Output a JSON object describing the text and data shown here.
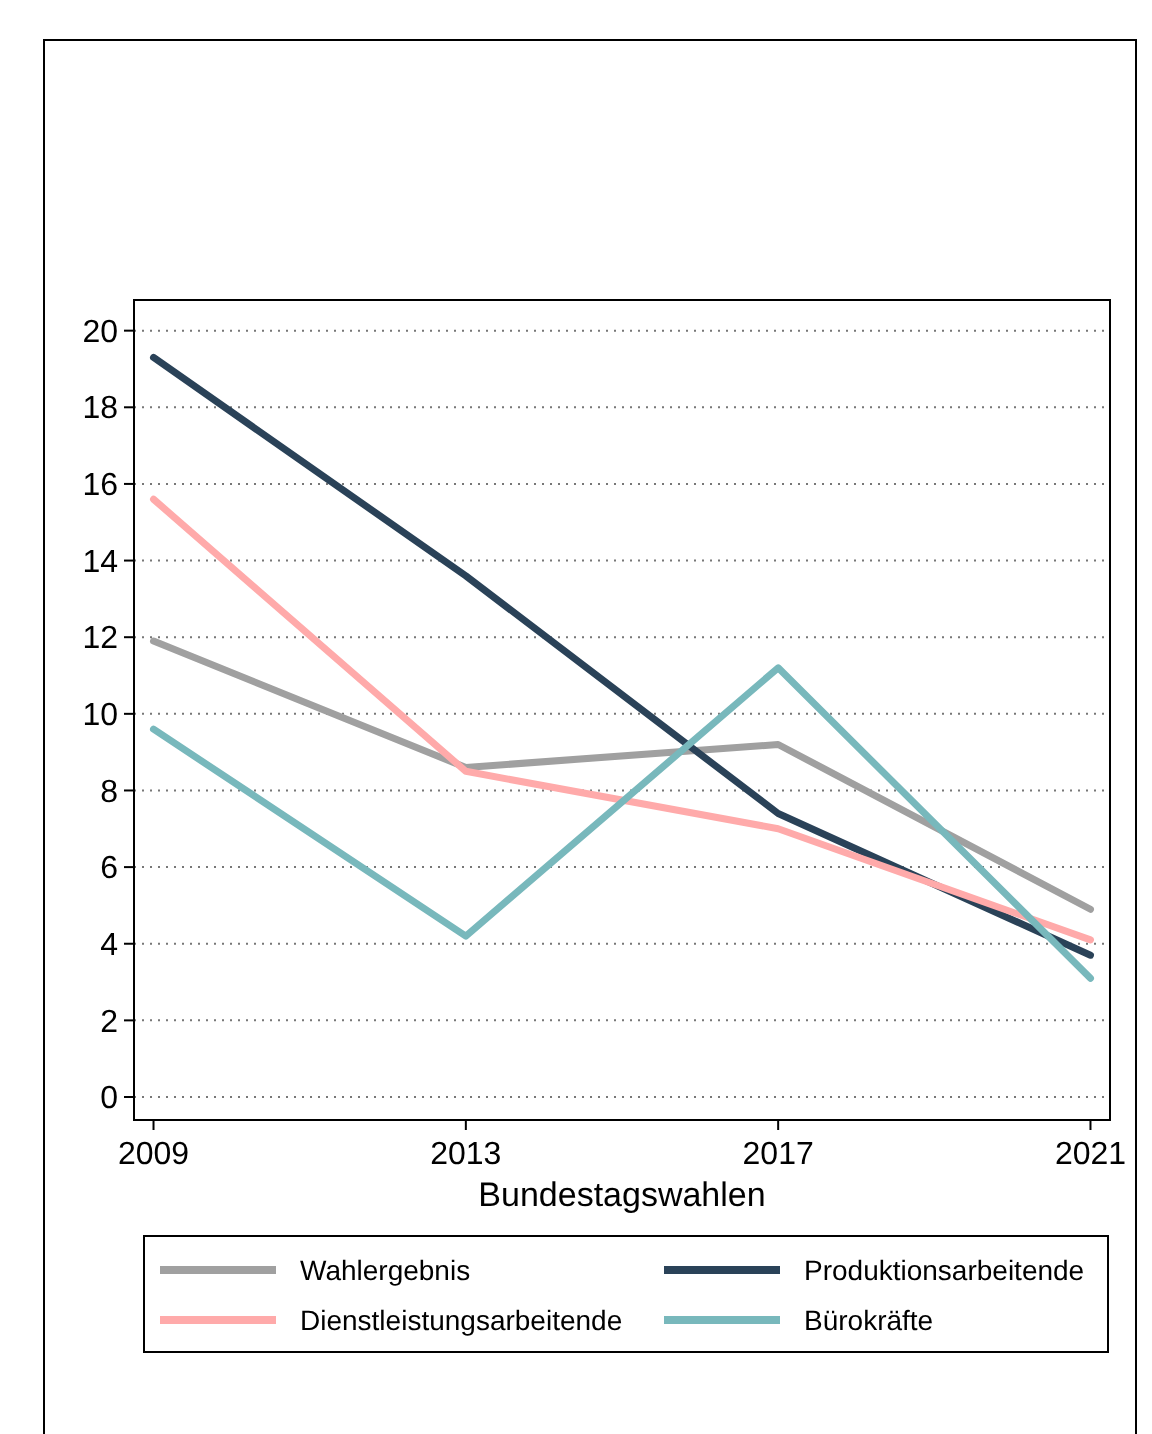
{
  "chart_data": {
    "type": "line",
    "xlabel": "Bundestagswahlen",
    "x": [
      2009,
      2013,
      2017,
      2021
    ],
    "series": [
      {
        "name": "Wahlergebnis",
        "color": "#a0a0a0",
        "values": [
          11.9,
          8.6,
          9.2,
          4.9
        ]
      },
      {
        "name": "Produktionsarbeitende",
        "color": "#2a4258",
        "values": [
          19.3,
          13.6,
          7.4,
          3.7
        ]
      },
      {
        "name": "Dienstleistungsarbeitende",
        "color": "#ffaaaa",
        "values": [
          15.6,
          8.5,
          7.0,
          4.1
        ]
      },
      {
        "name": "Bürokräfte",
        "color": "#78b8bc",
        "values": [
          9.6,
          4.2,
          11.2,
          3.1
        ]
      }
    ],
    "xlim": [
      2008.75,
      2021.25
    ],
    "xticks": [
      2009,
      2013,
      2017,
      2021
    ],
    "ylim": [
      -0.6,
      20.8
    ],
    "yticks": [
      0,
      2,
      4,
      6,
      8,
      10,
      12,
      14,
      16,
      18,
      20
    ],
    "grid": "y",
    "legend": "bottom",
    "marker": "none",
    "line_style": "solid"
  }
}
